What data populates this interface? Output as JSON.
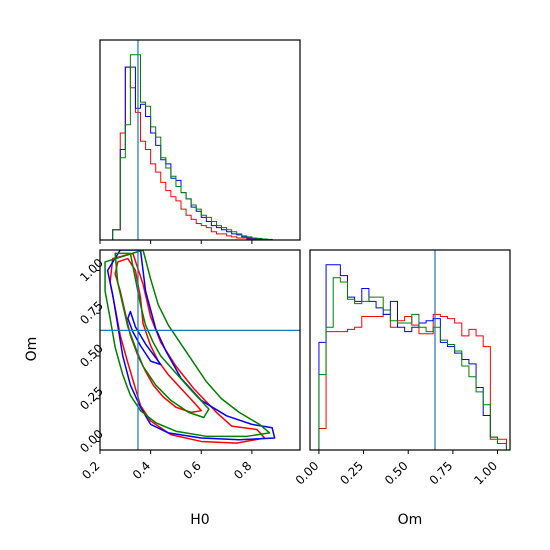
{
  "chart_data": {
    "type": "corner",
    "parameters": [
      "H0",
      "Om"
    ],
    "truths": {
      "H0": 0.35,
      "Om": 0.65
    },
    "truth_color": "#1f77b4",
    "series": [
      {
        "color": "#ff0000"
      },
      {
        "color": "#0000ff"
      },
      {
        "color": "#008000"
      }
    ],
    "xlim": {
      "H0": [
        0.2,
        0.99
      ],
      "Om": [
        -0.05,
        1.07
      ]
    },
    "ylim": {
      "Om": [
        -0.05,
        1.12
      ]
    },
    "ticks": {
      "H0": {
        "values": [
          0.2,
          0.4,
          0.6,
          0.8
        ],
        "labels": [
          "0.2",
          "0.4",
          "0.6",
          "0.8"
        ]
      },
      "Om": {
        "values": [
          0.0,
          0.25,
          0.5,
          0.75,
          1.0
        ],
        "labels": [
          "0.00",
          "0.25",
          "0.50",
          "0.75",
          "1.00"
        ]
      }
    },
    "hist_H0": {
      "bin_edges": [
        0.2,
        0.25,
        0.28,
        0.3,
        0.32,
        0.34,
        0.36,
        0.38,
        0.4,
        0.42,
        0.44,
        0.46,
        0.48,
        0.5,
        0.52,
        0.54,
        0.56,
        0.58,
        0.6,
        0.62,
        0.64,
        0.66,
        0.68,
        0.7,
        0.72,
        0.74,
        0.76,
        0.78,
        0.8,
        0.82,
        0.84,
        0.86,
        0.88,
        0.9,
        0.92,
        0.94,
        0.96,
        0.99
      ],
      "series_values": [
        [
          0.0,
          0.05,
          0.52,
          0.84,
          0.74,
          0.62,
          0.48,
          0.44,
          0.37,
          0.33,
          0.28,
          0.24,
          0.21,
          0.19,
          0.15,
          0.12,
          0.1,
          0.08,
          0.07,
          0.06,
          0.04,
          0.03,
          0.03,
          0.02,
          0.015,
          0.01,
          0.01,
          0.005,
          0.005,
          0.004,
          0.003,
          0.002,
          0.0,
          0.0,
          0.0,
          0.0,
          0.0
        ],
        [
          0.0,
          0.05,
          0.44,
          0.84,
          0.84,
          0.64,
          0.66,
          0.6,
          0.52,
          0.46,
          0.39,
          0.37,
          0.3,
          0.29,
          0.23,
          0.2,
          0.16,
          0.14,
          0.11,
          0.09,
          0.07,
          0.06,
          0.05,
          0.04,
          0.03,
          0.025,
          0.015,
          0.01,
          0.008,
          0.006,
          0.004,
          0.002,
          0.0,
          0.0,
          0.0,
          0.0,
          0.0
        ],
        [
          0.0,
          0.05,
          0.4,
          0.56,
          0.9,
          0.9,
          0.67,
          0.65,
          0.55,
          0.5,
          0.4,
          0.35,
          0.31,
          0.26,
          0.23,
          0.2,
          0.17,
          0.15,
          0.12,
          0.11,
          0.09,
          0.07,
          0.06,
          0.05,
          0.04,
          0.03,
          0.02,
          0.015,
          0.01,
          0.008,
          0.005,
          0.003,
          0.0,
          0.0,
          0.0,
          0.0,
          0.0
        ]
      ]
    },
    "hist_Om": {
      "bin_edges": [
        0.0,
        0.04,
        0.08,
        0.12,
        0.16,
        0.2,
        0.24,
        0.28,
        0.32,
        0.36,
        0.4,
        0.44,
        0.48,
        0.52,
        0.56,
        0.6,
        0.64,
        0.68,
        0.72,
        0.76,
        0.8,
        0.84,
        0.88,
        0.92,
        0.96,
        1.0,
        1.05
      ],
      "series_values": [
        [
          0.1,
          0.55,
          0.55,
          0.55,
          0.56,
          0.57,
          0.62,
          0.62,
          0.62,
          0.63,
          0.57,
          0.6,
          0.62,
          0.58,
          0.54,
          0.54,
          0.63,
          0.62,
          0.61,
          0.59,
          0.53,
          0.56,
          0.53,
          0.48,
          0.05,
          0.05
        ],
        [
          0.5,
          0.86,
          0.86,
          0.81,
          0.71,
          0.69,
          0.75,
          0.69,
          0.66,
          0.63,
          0.69,
          0.57,
          0.55,
          0.57,
          0.59,
          0.6,
          0.61,
          0.5,
          0.48,
          0.45,
          0.42,
          0.4,
          0.29,
          0.16,
          0.06,
          0.03
        ],
        [
          0.35,
          0.57,
          0.8,
          0.78,
          0.7,
          0.68,
          0.69,
          0.71,
          0.71,
          0.65,
          0.6,
          0.59,
          0.59,
          0.63,
          0.57,
          0.55,
          0.57,
          0.51,
          0.49,
          0.46,
          0.39,
          0.34,
          0.27,
          0.21,
          0.06,
          0.03
        ]
      ]
    },
    "contours_2d": {
      "series_levels": [
        [
          [
            [
              0.27,
              1.05
            ],
            [
              0.31,
              1.07
            ],
            [
              0.34,
              1.0
            ],
            [
              0.36,
              0.84
            ],
            [
              0.37,
              0.69
            ],
            [
              0.4,
              0.56
            ],
            [
              0.43,
              0.47
            ],
            [
              0.47,
              0.39
            ],
            [
              0.52,
              0.31
            ],
            [
              0.57,
              0.23
            ],
            [
              0.6,
              0.18
            ],
            [
              0.56,
              0.17
            ],
            [
              0.5,
              0.2
            ],
            [
              0.45,
              0.26
            ],
            [
              0.41,
              0.33
            ],
            [
              0.38,
              0.41
            ],
            [
              0.35,
              0.5
            ],
            [
              0.32,
              0.62
            ],
            [
              0.3,
              0.75
            ],
            [
              0.28,
              0.88
            ],
            [
              0.26,
              0.98
            ],
            [
              0.27,
              1.05
            ]
          ],
          [
            [
              0.25,
              1.07
            ],
            [
              0.33,
              1.1
            ],
            [
              0.37,
              0.92
            ],
            [
              0.4,
              0.73
            ],
            [
              0.44,
              0.58
            ],
            [
              0.5,
              0.44
            ],
            [
              0.57,
              0.31
            ],
            [
              0.66,
              0.17
            ],
            [
              0.72,
              0.09
            ],
            [
              0.82,
              0.07
            ],
            [
              0.85,
              0.02
            ],
            [
              0.74,
              -0.01
            ],
            [
              0.6,
              0.0
            ],
            [
              0.48,
              0.04
            ],
            [
              0.4,
              0.12
            ],
            [
              0.36,
              0.21
            ],
            [
              0.34,
              0.31
            ],
            [
              0.31,
              0.46
            ],
            [
              0.28,
              0.62
            ],
            [
              0.26,
              0.78
            ],
            [
              0.24,
              0.93
            ],
            [
              0.25,
              1.07
            ]
          ]
        ],
        [
          [
            [
              0.32,
              0.76
            ],
            [
              0.34,
              0.67
            ],
            [
              0.38,
              0.57
            ],
            [
              0.42,
              0.49
            ],
            [
              0.44,
              0.45
            ],
            [
              0.4,
              0.47
            ],
            [
              0.36,
              0.56
            ],
            [
              0.33,
              0.64
            ],
            [
              0.31,
              0.72
            ],
            [
              0.32,
              0.76
            ]
          ],
          [
            [
              0.28,
              1.12
            ],
            [
              0.36,
              1.12
            ],
            [
              0.38,
              0.88
            ],
            [
              0.42,
              0.66
            ],
            [
              0.46,
              0.53
            ],
            [
              0.52,
              0.37
            ],
            [
              0.6,
              0.24
            ],
            [
              0.7,
              0.15
            ],
            [
              0.8,
              0.1
            ],
            [
              0.88,
              0.08
            ],
            [
              0.89,
              0.02
            ],
            [
              0.75,
              0.01
            ],
            [
              0.6,
              0.02
            ],
            [
              0.47,
              0.05
            ],
            [
              0.4,
              0.1
            ],
            [
              0.36,
              0.2
            ],
            [
              0.32,
              0.33
            ],
            [
              0.29,
              0.5
            ],
            [
              0.27,
              0.68
            ],
            [
              0.25,
              0.86
            ],
            [
              0.23,
              1.0
            ],
            [
              0.28,
              1.12
            ]
          ]
        ],
        [
          [
            [
              0.26,
              1.1
            ],
            [
              0.32,
              1.1
            ],
            [
              0.34,
              0.95
            ],
            [
              0.36,
              0.8
            ],
            [
              0.38,
              0.68
            ],
            [
              0.41,
              0.58
            ],
            [
              0.44,
              0.5
            ],
            [
              0.5,
              0.4
            ],
            [
              0.56,
              0.3
            ],
            [
              0.63,
              0.19
            ],
            [
              0.61,
              0.14
            ],
            [
              0.55,
              0.17
            ],
            [
              0.48,
              0.24
            ],
            [
              0.42,
              0.33
            ],
            [
              0.37,
              0.44
            ],
            [
              0.34,
              0.55
            ],
            [
              0.31,
              0.67
            ],
            [
              0.29,
              0.8
            ],
            [
              0.27,
              0.93
            ],
            [
              0.26,
              1.1
            ]
          ],
          [
            [
              0.22,
              1.05
            ],
            [
              0.37,
              1.12
            ],
            [
              0.4,
              0.95
            ],
            [
              0.43,
              0.8
            ],
            [
              0.47,
              0.68
            ],
            [
              0.52,
              0.57
            ],
            [
              0.57,
              0.46
            ],
            [
              0.62,
              0.35
            ],
            [
              0.68,
              0.25
            ],
            [
              0.75,
              0.17
            ],
            [
              0.83,
              0.1
            ],
            [
              0.87,
              0.05
            ],
            [
              0.78,
              0.03
            ],
            [
              0.62,
              0.03
            ],
            [
              0.5,
              0.06
            ],
            [
              0.42,
              0.11
            ],
            [
              0.36,
              0.18
            ],
            [
              0.32,
              0.27
            ],
            [
              0.29,
              0.39
            ],
            [
              0.26,
              0.55
            ],
            [
              0.24,
              0.72
            ],
            [
              0.22,
              0.88
            ],
            [
              0.22,
              1.05
            ]
          ]
        ]
      ]
    }
  }
}
